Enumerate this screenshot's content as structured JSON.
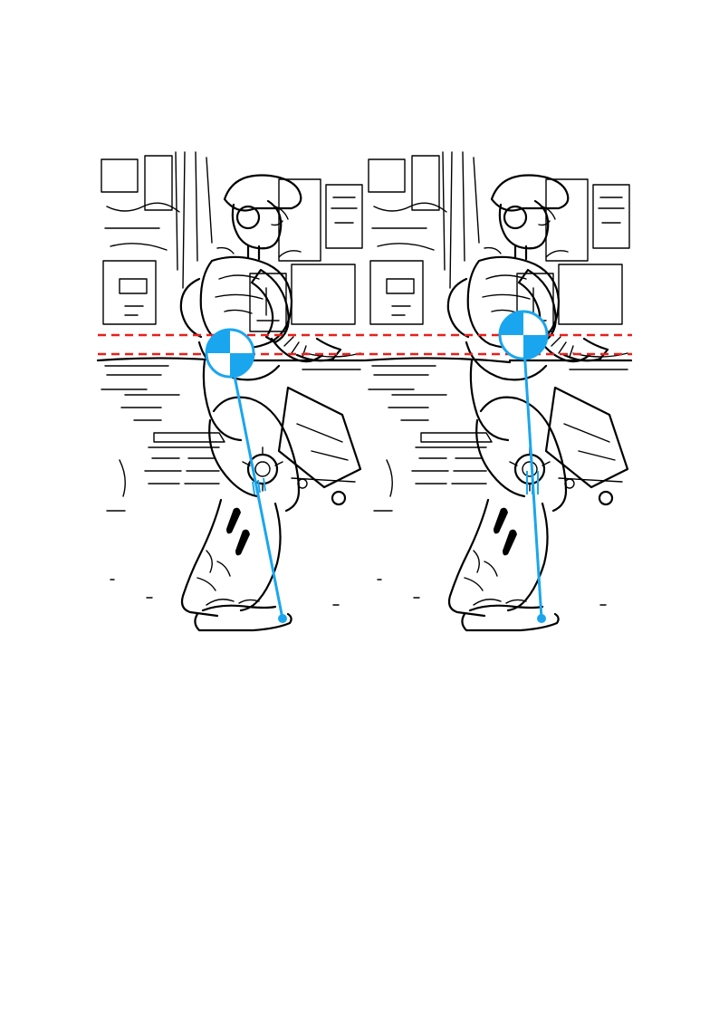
{
  "figure": {
    "panels": [
      {
        "id": "left",
        "label": ""
      },
      {
        "id": "right",
        "label": ""
      }
    ],
    "colors": {
      "com_marker": "#1aa6ee",
      "reference_lines": "#e8201c",
      "line_art": "#000000",
      "background": "#ffffff"
    },
    "markers": {
      "com_icon": "center-of-mass-icon",
      "support_point": "foot-contact-point"
    }
  }
}
